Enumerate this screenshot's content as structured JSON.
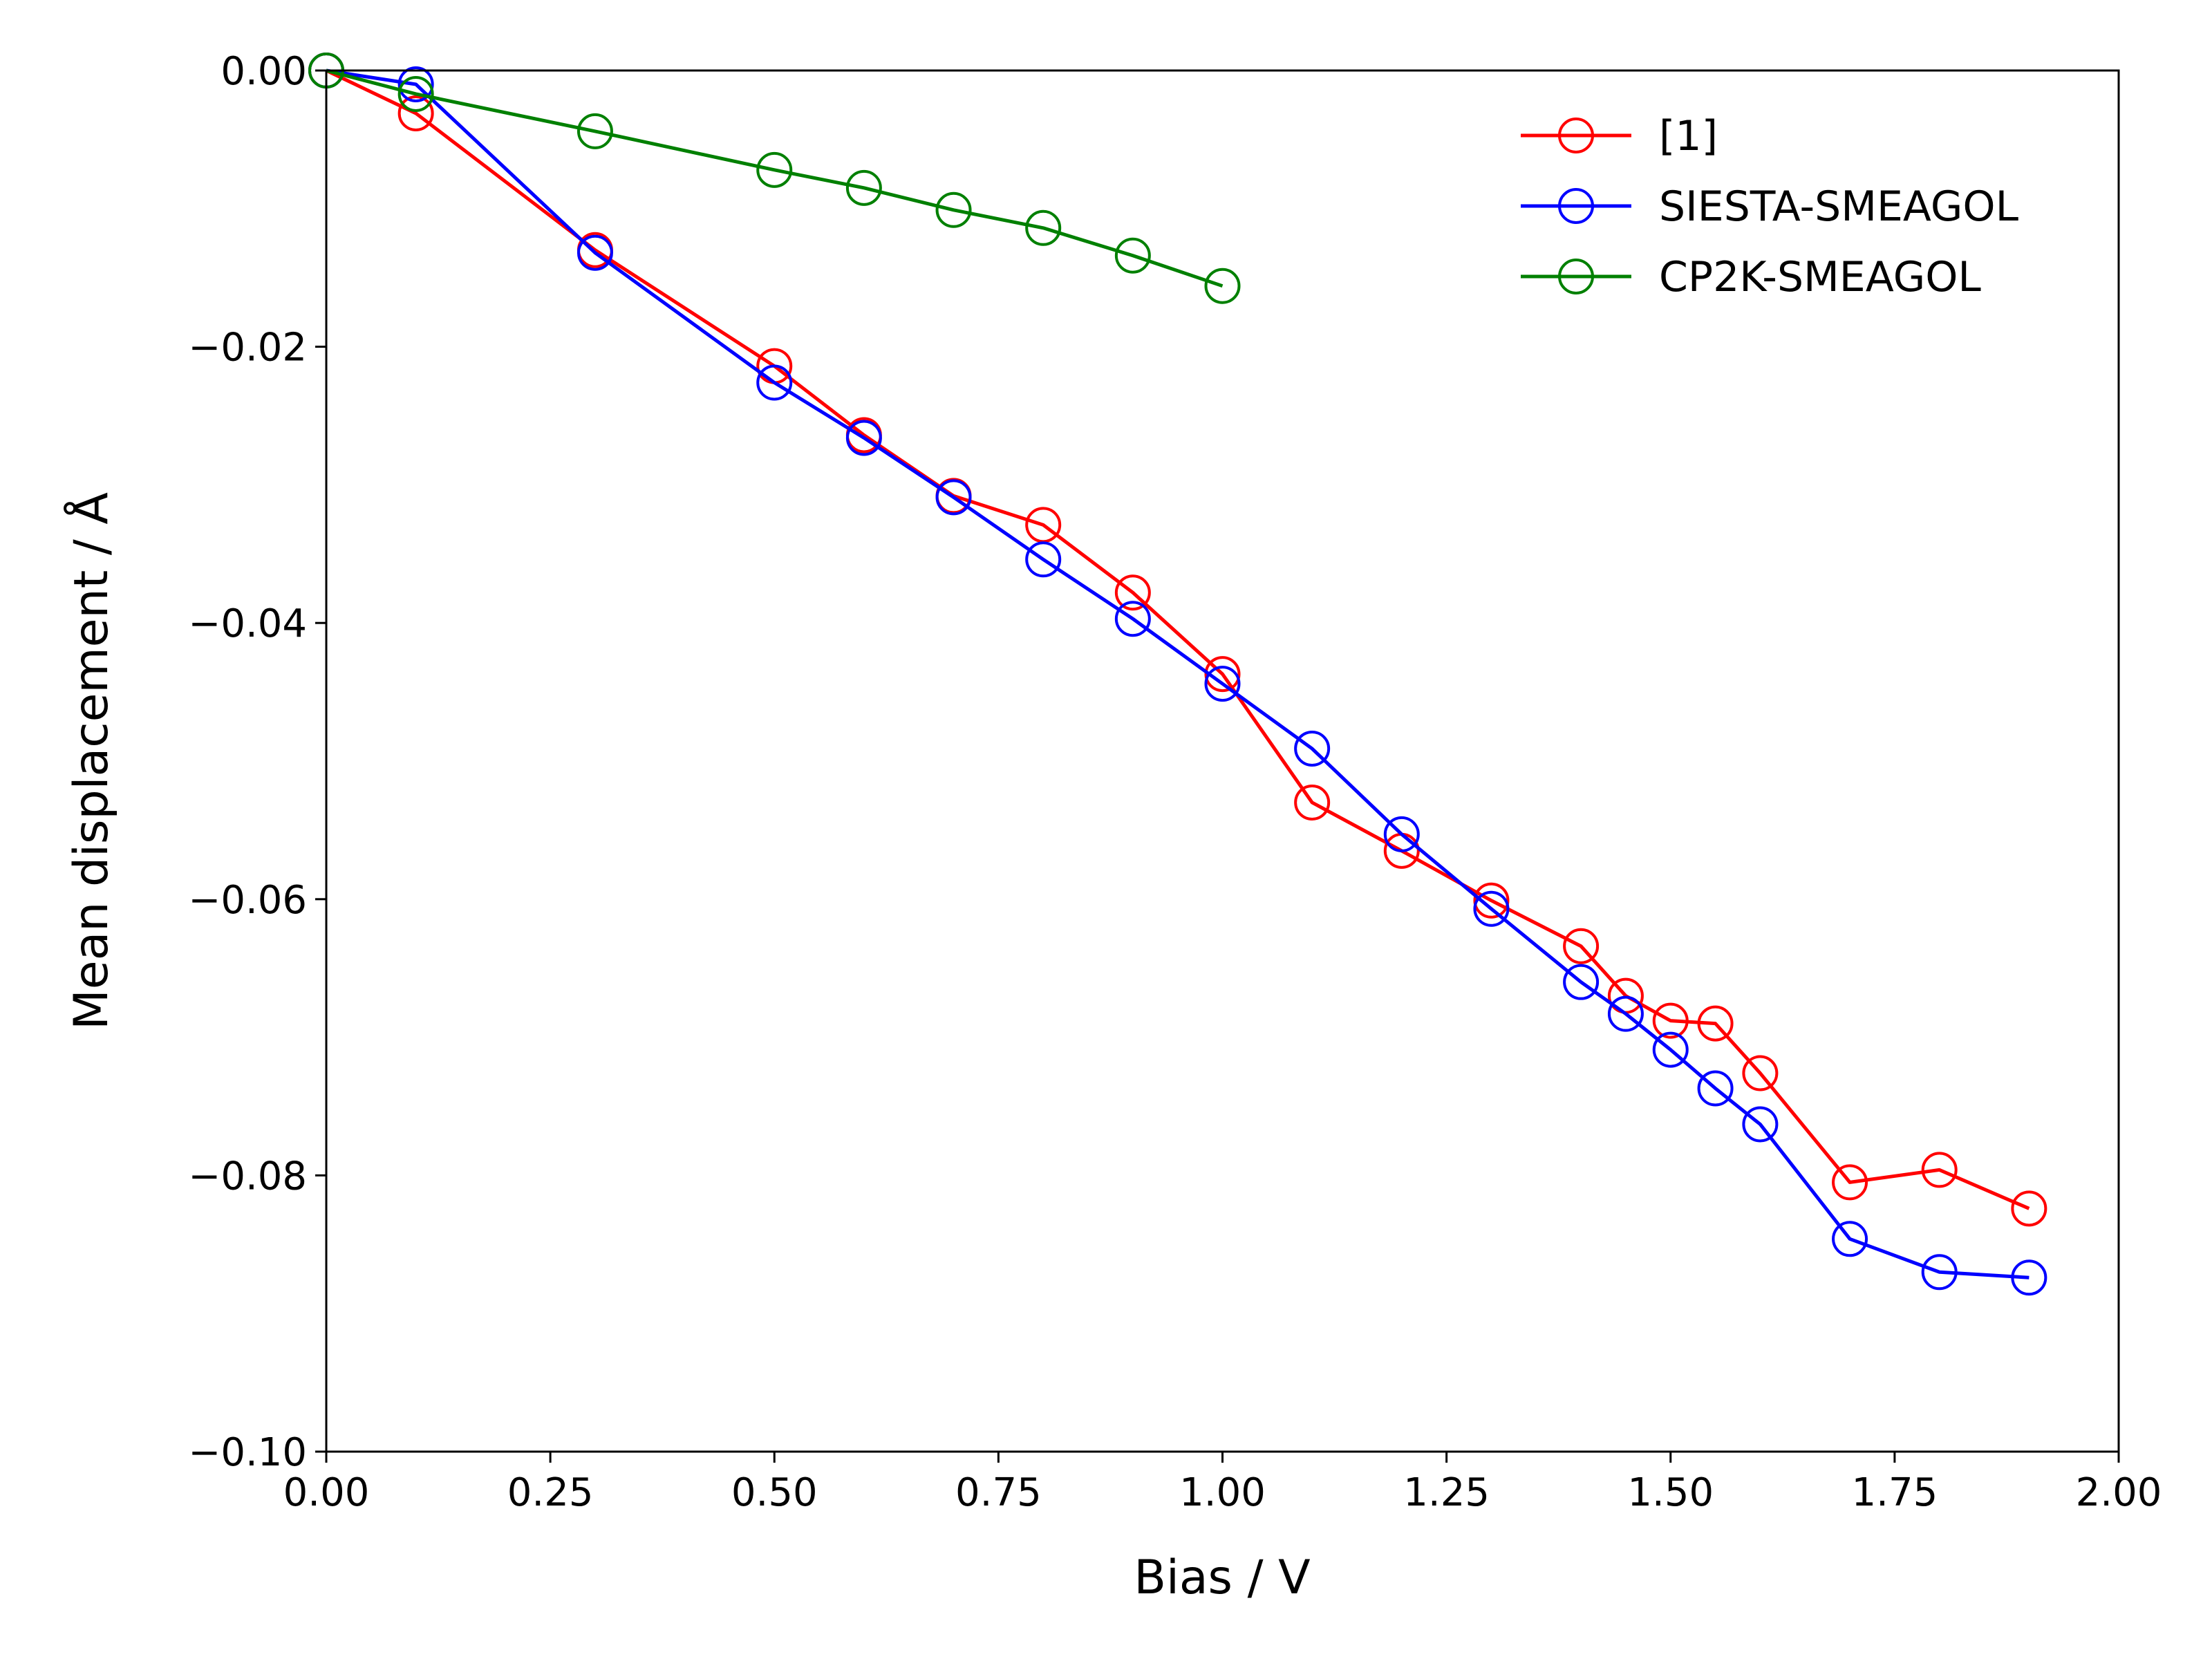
{
  "chart_data": {
    "type": "line",
    "xlabel": "Bias / V",
    "ylabel": "Mean displacement / Å",
    "xlim": [
      0,
      2
    ],
    "ylim": [
      -0.1,
      0
    ],
    "xticks": [
      "0.00",
      "0.25",
      "0.50",
      "0.75",
      "1.00",
      "1.25",
      "1.50",
      "1.75",
      "2.00"
    ],
    "yticks": [
      "0.00",
      "−0.02",
      "−0.04",
      "−0.06",
      "−0.08",
      "−0.10"
    ],
    "grid": false,
    "legend_position": "top-right",
    "series": [
      {
        "name": "[1]",
        "color": "#ff0000",
        "marker": "open-circle",
        "x": [
          0.0,
          0.1,
          0.3,
          0.5,
          0.6,
          0.7,
          0.8,
          0.9,
          1.0,
          1.1,
          1.2,
          1.3,
          1.4,
          1.45,
          1.5,
          1.55,
          1.6,
          1.7,
          1.8,
          1.9
        ],
        "y": [
          0.0,
          -0.0031,
          -0.013,
          -0.0214,
          -0.0264,
          -0.0308,
          -0.0329,
          -0.0378,
          -0.0437,
          -0.053,
          -0.0565,
          -0.0601,
          -0.0634,
          -0.067,
          -0.0688,
          -0.069,
          -0.0726,
          -0.0805,
          -0.0796,
          -0.0824
        ]
      },
      {
        "name": "SIESTA-SMEAGOL",
        "color": "#0000ff",
        "marker": "open-circle",
        "x": [
          0.0,
          0.1,
          0.3,
          0.5,
          0.6,
          0.7,
          0.8,
          0.9,
          1.0,
          1.1,
          1.2,
          1.3,
          1.4,
          1.45,
          1.5,
          1.55,
          1.6,
          1.7,
          1.8,
          1.9
        ],
        "y": [
          0.0,
          -0.001,
          -0.0132,
          -0.0226,
          -0.0266,
          -0.0309,
          -0.0354,
          -0.0397,
          -0.0444,
          -0.0491,
          -0.0553,
          -0.0607,
          -0.066,
          -0.0683,
          -0.0709,
          -0.0737,
          -0.0763,
          -0.0846,
          -0.087,
          -0.0874
        ]
      },
      {
        "name": "CP2K-SMEAGOL",
        "color": "#008000",
        "marker": "open-circle",
        "x": [
          0.0,
          0.1,
          0.3,
          0.5,
          0.6,
          0.7,
          0.8,
          0.9,
          1.0
        ],
        "y": [
          0.0,
          -0.0017,
          -0.0044,
          -0.0072,
          -0.0085,
          -0.0101,
          -0.0114,
          -0.0134,
          -0.0156
        ]
      }
    ]
  }
}
